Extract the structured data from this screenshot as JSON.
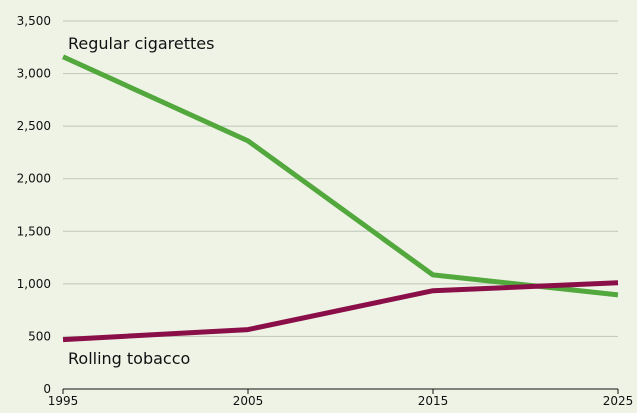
{
  "chart_data": {
    "type": "line",
    "title": "",
    "xlabel": "",
    "ylabel": "",
    "x": [
      1995,
      2005,
      2015,
      2025
    ],
    "xlim": [
      1995,
      2025
    ],
    "ylim": [
      0,
      3500
    ],
    "x_ticks": [
      "1995",
      "2005",
      "2015",
      "2025"
    ],
    "y_ticks": [
      "0",
      "500",
      "1,000",
      "1,500",
      "2,000",
      "2,500",
      "3,000",
      "3,500"
    ],
    "y_tick_values": [
      0,
      500,
      1000,
      1500,
      2000,
      2500,
      3000,
      3500
    ],
    "grid": true,
    "legend": "inline labels",
    "series": [
      {
        "name": "Regular cigarettes",
        "color": "#52a83c",
        "values": [
          3160,
          2360,
          1085,
          895
        ]
      },
      {
        "name": "Rolling tobacco",
        "color": "#8a0f49",
        "values": [
          470,
          565,
          935,
          1010
        ]
      }
    ]
  }
}
